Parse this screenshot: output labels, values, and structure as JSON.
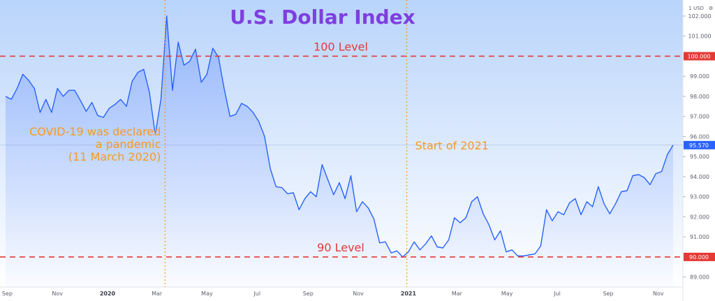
{
  "chart_data": {
    "type": "area",
    "title": "U.S. Dollar Index",
    "currency": "USD",
    "currency_prefix": "1",
    "ylim": [
      88.5,
      102.8
    ],
    "y_ticks": [
      "89.000",
      "91.000",
      "92.000",
      "93.000",
      "94.000",
      "95.000",
      "96.000",
      "97.000",
      "98.000",
      "99.000",
      "101.000",
      "102.000"
    ],
    "x_ticks": [
      {
        "label": "Sep",
        "x": "2019-09",
        "bold": false
      },
      {
        "label": "Nov",
        "x": "2019-11",
        "bold": false
      },
      {
        "label": "2020",
        "x": "2020-01",
        "bold": true
      },
      {
        "label": "Mar",
        "x": "2020-03",
        "bold": false
      },
      {
        "label": "May",
        "x": "2020-05",
        "bold": false
      },
      {
        "label": "Jul",
        "x": "2020-07",
        "bold": false
      },
      {
        "label": "Sep",
        "x": "2020-09",
        "bold": false
      },
      {
        "label": "Nov",
        "x": "2020-11",
        "bold": false
      },
      {
        "label": "2021",
        "x": "2021-01",
        "bold": true
      },
      {
        "label": "Mar",
        "x": "2021-03",
        "bold": false
      },
      {
        "label": "May",
        "x": "2021-05",
        "bold": false
      },
      {
        "label": "Jul",
        "x": "2021-07",
        "bold": false
      },
      {
        "label": "Sep",
        "x": "2021-09",
        "bold": false
      },
      {
        "label": "Nov",
        "x": "2021-11",
        "bold": false
      }
    ],
    "series": [
      {
        "color": "#2962ff",
        "points": [
          {
            "x": "2019-08-30",
            "y": 98.0
          },
          {
            "x": "2019-09-06",
            "y": 97.85
          },
          {
            "x": "2019-09-13",
            "y": 98.4
          },
          {
            "x": "2019-09-20",
            "y": 99.1
          },
          {
            "x": "2019-09-27",
            "y": 98.8
          },
          {
            "x": "2019-10-04",
            "y": 98.4
          },
          {
            "x": "2019-10-11",
            "y": 97.2
          },
          {
            "x": "2019-10-18",
            "y": 97.85
          },
          {
            "x": "2019-10-25",
            "y": 97.2
          },
          {
            "x": "2019-11-01",
            "y": 98.4
          },
          {
            "x": "2019-11-08",
            "y": 98.0
          },
          {
            "x": "2019-11-15",
            "y": 98.3
          },
          {
            "x": "2019-11-22",
            "y": 98.3
          },
          {
            "x": "2019-11-29",
            "y": 97.8
          },
          {
            "x": "2019-12-06",
            "y": 97.25
          },
          {
            "x": "2019-12-13",
            "y": 97.7
          },
          {
            "x": "2019-12-20",
            "y": 97.05
          },
          {
            "x": "2019-12-27",
            "y": 96.95
          },
          {
            "x": "2020-01-03",
            "y": 97.4
          },
          {
            "x": "2020-01-10",
            "y": 97.6
          },
          {
            "x": "2020-01-17",
            "y": 97.85
          },
          {
            "x": "2020-01-24",
            "y": 97.5
          },
          {
            "x": "2020-01-31",
            "y": 98.75
          },
          {
            "x": "2020-02-07",
            "y": 99.2
          },
          {
            "x": "2020-02-14",
            "y": 99.35
          },
          {
            "x": "2020-02-21",
            "y": 98.2
          },
          {
            "x": "2020-02-28",
            "y": 96.1
          },
          {
            "x": "2020-03-06",
            "y": 97.85
          },
          {
            "x": "2020-03-13",
            "y": 102.0
          },
          {
            "x": "2020-03-20",
            "y": 98.3
          },
          {
            "x": "2020-03-27",
            "y": 100.7
          },
          {
            "x": "2020-04-03",
            "y": 99.55
          },
          {
            "x": "2020-04-10",
            "y": 99.75
          },
          {
            "x": "2020-04-17",
            "y": 100.35
          },
          {
            "x": "2020-04-24",
            "y": 98.7
          },
          {
            "x": "2020-05-01",
            "y": 99.1
          },
          {
            "x": "2020-05-08",
            "y": 100.4
          },
          {
            "x": "2020-05-15",
            "y": 99.95
          },
          {
            "x": "2020-05-22",
            "y": 98.35
          },
          {
            "x": "2020-05-29",
            "y": 97.0
          },
          {
            "x": "2020-06-05",
            "y": 97.1
          },
          {
            "x": "2020-06-12",
            "y": 97.65
          },
          {
            "x": "2020-06-19",
            "y": 97.5
          },
          {
            "x": "2020-06-26",
            "y": 97.2
          },
          {
            "x": "2020-07-03",
            "y": 96.75
          },
          {
            "x": "2020-07-10",
            "y": 96.0
          },
          {
            "x": "2020-07-17",
            "y": 94.4
          },
          {
            "x": "2020-07-24",
            "y": 93.5
          },
          {
            "x": "2020-07-31",
            "y": 93.45
          },
          {
            "x": "2020-08-07",
            "y": 93.15
          },
          {
            "x": "2020-08-14",
            "y": 93.2
          },
          {
            "x": "2020-08-21",
            "y": 92.35
          },
          {
            "x": "2020-08-28",
            "y": 92.9
          },
          {
            "x": "2020-09-04",
            "y": 93.25
          },
          {
            "x": "2020-09-11",
            "y": 93.0
          },
          {
            "x": "2020-09-18",
            "y": 94.6
          },
          {
            "x": "2020-09-25",
            "y": 93.85
          },
          {
            "x": "2020-10-02",
            "y": 93.1
          },
          {
            "x": "2020-10-09",
            "y": 93.7
          },
          {
            "x": "2020-10-16",
            "y": 92.9
          },
          {
            "x": "2020-10-23",
            "y": 94.05
          },
          {
            "x": "2020-10-30",
            "y": 92.25
          },
          {
            "x": "2020-11-06",
            "y": 92.75
          },
          {
            "x": "2020-11-13",
            "y": 92.45
          },
          {
            "x": "2020-11-20",
            "y": 91.9
          },
          {
            "x": "2020-11-27",
            "y": 90.7
          },
          {
            "x": "2020-12-04",
            "y": 90.75
          },
          {
            "x": "2020-12-11",
            "y": 90.2
          },
          {
            "x": "2020-12-18",
            "y": 90.3
          },
          {
            "x": "2020-12-25",
            "y": 90.0
          },
          {
            "x": "2021-01-01",
            "y": 90.25
          },
          {
            "x": "2021-01-08",
            "y": 90.75
          },
          {
            "x": "2021-01-15",
            "y": 90.35
          },
          {
            "x": "2021-01-22",
            "y": 90.65
          },
          {
            "x": "2021-01-29",
            "y": 91.05
          },
          {
            "x": "2021-02-05",
            "y": 90.5
          },
          {
            "x": "2021-02-12",
            "y": 90.45
          },
          {
            "x": "2021-02-19",
            "y": 90.85
          },
          {
            "x": "2021-02-26",
            "y": 91.95
          },
          {
            "x": "2021-03-05",
            "y": 91.7
          },
          {
            "x": "2021-03-12",
            "y": 91.95
          },
          {
            "x": "2021-03-19",
            "y": 92.75
          },
          {
            "x": "2021-03-26",
            "y": 93.0
          },
          {
            "x": "2021-04-02",
            "y": 92.15
          },
          {
            "x": "2021-04-09",
            "y": 91.6
          },
          {
            "x": "2021-04-16",
            "y": 90.85
          },
          {
            "x": "2021-04-23",
            "y": 91.3
          },
          {
            "x": "2021-04-30",
            "y": 90.25
          },
          {
            "x": "2021-05-07",
            "y": 90.35
          },
          {
            "x": "2021-05-14",
            "y": 90.05
          },
          {
            "x": "2021-05-21",
            "y": 90.05
          },
          {
            "x": "2021-05-28",
            "y": 90.1
          },
          {
            "x": "2021-06-04",
            "y": 90.15
          },
          {
            "x": "2021-06-11",
            "y": 90.55
          },
          {
            "x": "2021-06-18",
            "y": 92.35
          },
          {
            "x": "2021-06-25",
            "y": 91.8
          },
          {
            "x": "2021-07-02",
            "y": 92.25
          },
          {
            "x": "2021-07-09",
            "y": 92.1
          },
          {
            "x": "2021-07-16",
            "y": 92.7
          },
          {
            "x": "2021-07-23",
            "y": 92.9
          },
          {
            "x": "2021-07-30",
            "y": 92.1
          },
          {
            "x": "2021-08-06",
            "y": 92.75
          },
          {
            "x": "2021-08-13",
            "y": 92.5
          },
          {
            "x": "2021-08-20",
            "y": 93.5
          },
          {
            "x": "2021-08-27",
            "y": 92.65
          },
          {
            "x": "2021-09-03",
            "y": 92.15
          },
          {
            "x": "2021-09-10",
            "y": 92.65
          },
          {
            "x": "2021-09-17",
            "y": 93.25
          },
          {
            "x": "2021-09-24",
            "y": 93.3
          },
          {
            "x": "2021-10-01",
            "y": 94.05
          },
          {
            "x": "2021-10-08",
            "y": 94.1
          },
          {
            "x": "2021-10-15",
            "y": 93.95
          },
          {
            "x": "2021-10-22",
            "y": 93.6
          },
          {
            "x": "2021-10-29",
            "y": 94.15
          },
          {
            "x": "2021-11-05",
            "y": 94.25
          },
          {
            "x": "2021-11-12",
            "y": 95.1
          },
          {
            "x": "2021-11-19",
            "y": 95.57
          }
        ]
      }
    ],
    "last_price": {
      "value": 95.57,
      "label": "95.570"
    },
    "annotations": [
      {
        "id": "level-100",
        "type": "hline",
        "y": 100.0,
        "axis_label": "100.000",
        "text": "100 Level",
        "color": "#e53935"
      },
      {
        "id": "level-90",
        "type": "hline",
        "y": 90.0,
        "axis_label": "90.000",
        "text": "90 Level",
        "color": "#e53935"
      },
      {
        "id": "covid",
        "type": "vline",
        "x": "2020-03-11",
        "text_lines": [
          "COVID-19 was declared",
          "a pandemic",
          "(11 March 2020)"
        ],
        "color": "#f59a23"
      },
      {
        "id": "start-2021",
        "type": "vline",
        "x": "2020-12-30",
        "text": "Start of 2021",
        "color": "#f59a23"
      }
    ]
  }
}
